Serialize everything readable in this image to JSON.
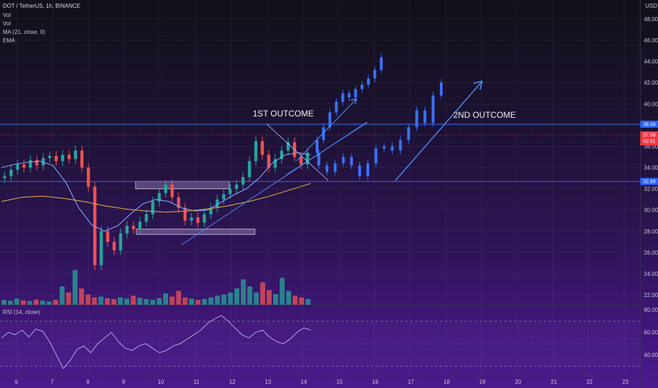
{
  "header": {
    "symbol_line": "DOT / TetherUS, 1h, BINANCE",
    "indicators": [
      "Vol",
      "Vol",
      "MA (21, close, 0)",
      "EMA"
    ],
    "currency": "USDT"
  },
  "rsi_label": "RSI (14, close)",
  "chart_data": {
    "type": "candlestick",
    "symbol": "DOT / TetherUS",
    "interval": "1h",
    "exchange": "BINANCE",
    "yaxis": {
      "ticks": [
        22.0,
        24.0,
        26.0,
        28.0,
        30.0,
        32.0,
        34.0,
        36.0,
        38.0,
        40.0,
        42.0,
        44.0,
        46.0,
        48.0
      ],
      "range": [
        21,
        49
      ]
    },
    "xaxis": {
      "ticks": [
        "6",
        "7",
        "8",
        "9",
        "10",
        "11",
        "12",
        "13",
        "14",
        "15",
        "16",
        "17",
        "18",
        "19",
        "20",
        "21",
        "22",
        "23"
      ]
    },
    "price_tags": [
      {
        "value": "38.09",
        "color": "#2962ff"
      },
      {
        "value": "37.08",
        "color": "#f23645"
      },
      {
        "countdown": "02:01"
      },
      {
        "value": "32.69",
        "color": "#2962ff"
      }
    ],
    "levels": {
      "resistance": 38.09,
      "support": 32.69
    },
    "zones": [
      {
        "from": 32.0,
        "to": 32.7
      },
      {
        "from": 27.7,
        "to": 28.2
      }
    ],
    "annotations": [
      {
        "text": "1ST OUTCOME"
      },
      {
        "text": "2ND OUTCOME"
      }
    ],
    "close_series_approx": [
      33.2,
      33.8,
      34.3,
      34.0,
      34.7,
      34.2,
      34.9,
      35.1,
      34.6,
      35.2,
      34.8,
      35.6,
      34.0,
      32.2,
      24.8,
      28.0,
      27.0,
      26.2,
      27.8,
      28.5,
      28.2,
      28.9,
      29.6,
      30.8,
      31.6,
      32.4,
      31.2,
      30.2,
      29.0,
      29.3,
      28.8,
      29.6,
      30.2,
      31.0,
      31.5,
      32.0,
      32.4,
      33.1,
      34.6,
      36.5,
      35.2,
      34.0,
      34.8,
      35.6,
      36.4,
      35.0,
      34.3,
      35.4
    ],
    "projection_1": [
      35.4,
      36.6,
      37.8,
      39.2,
      40.2,
      41.0,
      40.6,
      41.4,
      41.8,
      42.4,
      43.2,
      44.4
    ],
    "projection_2": [
      35.4,
      34.2,
      33.6,
      34.4,
      35.0,
      34.2,
      33.2,
      34.4,
      35.8,
      36.0,
      35.6,
      36.6,
      37.8,
      39.4,
      38.2,
      40.8,
      42.0
    ],
    "ma_21_approx": [
      34.0,
      34.3,
      34.5,
      34.6,
      34.2,
      32.6,
      30.2,
      28.6,
      28.0,
      28.5,
      29.6,
      30.6,
      31.0,
      30.8,
      30.2,
      29.9,
      30.0,
      30.7,
      31.4,
      32.0,
      33.0,
      34.4,
      35.2,
      35.4,
      35.2
    ],
    "ema_approx": [
      30.8,
      31.2,
      31.3,
      31.1,
      30.8,
      30.4,
      30.1,
      29.9,
      29.8,
      29.9,
      30.1,
      30.4,
      30.8,
      31.3,
      31.9,
      32.5
    ],
    "volume_relative": [
      0.12,
      0.1,
      0.15,
      0.11,
      0.09,
      0.13,
      0.1,
      0.08,
      0.12,
      0.45,
      0.3,
      0.85,
      0.4,
      0.25,
      0.18,
      0.2,
      0.16,
      0.14,
      0.18,
      0.15,
      0.22,
      0.17,
      0.14,
      0.12,
      0.16,
      0.28,
      0.2,
      0.34,
      0.18,
      0.15,
      0.12,
      0.14,
      0.18,
      0.22,
      0.25,
      0.3,
      0.4,
      0.62,
      0.45,
      0.3,
      0.55,
      0.36,
      0.26,
      0.66,
      0.34,
      0.22,
      0.18,
      0.14
    ],
    "rsi": {
      "ticks": [
        40.0,
        60.0,
        80.0
      ],
      "range": [
        22,
        82
      ],
      "bands": [
        70,
        30
      ],
      "values": [
        55,
        60,
        58,
        62,
        56,
        63,
        61,
        52,
        40,
        28,
        35,
        45,
        48,
        42,
        50,
        55,
        60,
        52,
        46,
        44,
        48,
        50,
        46,
        42,
        44,
        48,
        50,
        54,
        58,
        62,
        68,
        72,
        75,
        70,
        64,
        58,
        55,
        60,
        62,
        56,
        52,
        50,
        54,
        60,
        64,
        62
      ]
    }
  }
}
